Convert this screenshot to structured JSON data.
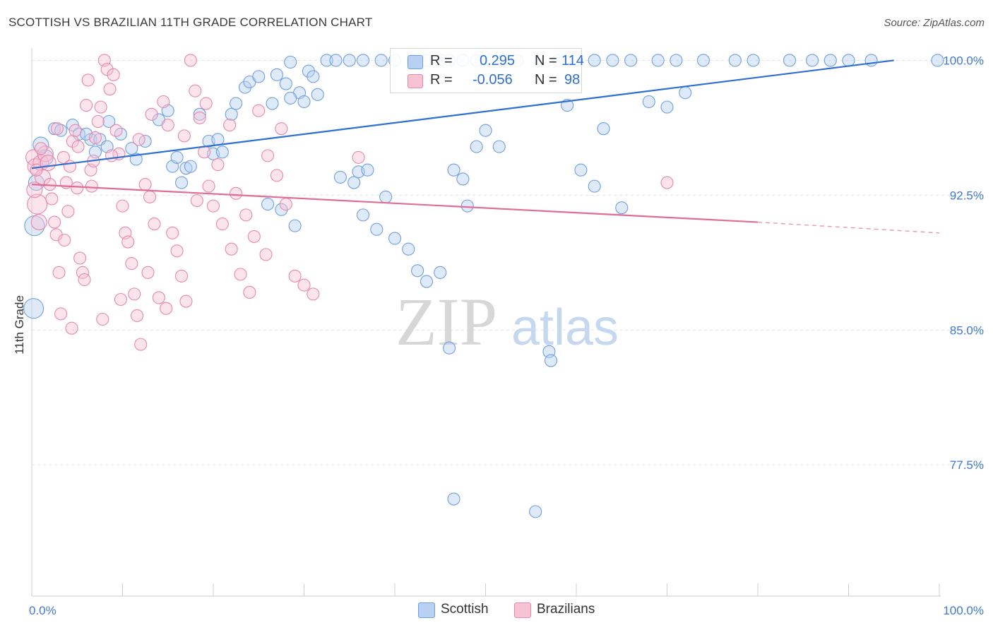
{
  "header": {
    "title": "SCOTTISH VS BRAZILIAN 11TH GRADE CORRELATION CHART",
    "source": "Source: ZipAtlas.com"
  },
  "legend": {
    "rows": [
      {
        "r_label": "R =",
        "r_value": "0.295",
        "n_label": "N =",
        "n_value": "114",
        "color": "#6f9fe0"
      },
      {
        "r_label": "R =",
        "r_value": "-0.056",
        "n_label": "N =",
        "n_value": "98",
        "color": "#e888aa"
      }
    ],
    "bottom": [
      {
        "name": "Scottish"
      },
      {
        "name": "Brazilians"
      }
    ]
  },
  "colors": {
    "blue_fill": "#b8d0f2",
    "blue_stroke": "#6f9fe0",
    "blue_line": "#2f6fd0",
    "pink_fill": "#f7c3d4",
    "pink_stroke": "#e888aa",
    "pink_line": "#e06c98",
    "grid": "#e2e2e2",
    "tick_label": "#3f78cf"
  },
  "chart_data": {
    "type": "scatter",
    "title": "SCOTTISH VS BRAZILIAN 11TH GRADE CORRELATION CHART",
    "xlabel": "",
    "ylabel": "11th Grade",
    "xlim": [
      0,
      100
    ],
    "ylim": [
      70.2,
      101.0
    ],
    "x_tick_labels": [
      "0.0%",
      "100.0%"
    ],
    "y_ticks": [
      77.5,
      85.0,
      92.5,
      100.0
    ],
    "y_tick_labels": [
      "77.5%",
      "85.0%",
      "92.5%",
      "100.0%"
    ],
    "grid": true,
    "watermark": "ZIPatlas",
    "series": [
      {
        "name": "Scottish",
        "r": 0.295,
        "n": 114,
        "trend": {
          "x0": 0,
          "y0": 94.0,
          "x1": 95,
          "y1": 100.0
        },
        "points": [
          [
            1.0,
            95.3,
            2
          ],
          [
            0.5,
            93.2,
            2
          ],
          [
            0.3,
            90.8,
            3
          ],
          [
            0.2,
            86.2,
            3
          ],
          [
            1.5,
            94.6,
            2
          ],
          [
            2.5,
            96.2,
            1
          ],
          [
            3.2,
            96.1,
            1
          ],
          [
            4.5,
            96.4,
            1
          ],
          [
            5.2,
            95.9,
            1
          ],
          [
            6.5,
            95.6,
            1
          ],
          [
            8.5,
            96.6,
            1
          ],
          [
            9.8,
            95.9,
            1
          ],
          [
            11.0,
            95.1,
            1
          ],
          [
            11.5,
            94.5,
            1
          ],
          [
            12.5,
            95.5,
            1
          ],
          [
            7.5,
            95.6,
            1
          ],
          [
            8.3,
            95.2,
            1
          ],
          [
            6.0,
            95.9,
            1
          ],
          [
            7.0,
            94.9,
            1
          ],
          [
            14.0,
            96.7,
            1
          ],
          [
            15.0,
            97.2,
            1
          ],
          [
            15.5,
            94.1,
            1
          ],
          [
            16.0,
            94.6,
            1
          ],
          [
            16.5,
            93.2,
            1
          ],
          [
            17.0,
            94.0,
            1
          ],
          [
            17.5,
            94.1,
            1
          ],
          [
            18.5,
            97.0,
            1
          ],
          [
            19.5,
            95.5,
            1
          ],
          [
            20.0,
            94.8,
            1
          ],
          [
            20.5,
            95.6,
            1
          ],
          [
            21.0,
            94.9,
            1
          ],
          [
            22.0,
            97.0,
            1
          ],
          [
            22.5,
            97.6,
            1
          ],
          [
            23.5,
            98.5,
            1
          ],
          [
            24.0,
            98.8,
            1
          ],
          [
            25.0,
            99.1,
            1
          ],
          [
            26.5,
            97.6,
            1
          ],
          [
            27.0,
            99.2,
            1
          ],
          [
            28.0,
            98.7,
            1
          ],
          [
            28.5,
            99.9,
            1
          ],
          [
            29.5,
            98.2,
            1
          ],
          [
            30.0,
            97.7,
            1
          ],
          [
            30.5,
            99.4,
            1
          ],
          [
            31.0,
            99.1,
            1
          ],
          [
            31.5,
            98.1,
            1
          ],
          [
            32.5,
            100.0,
            1
          ],
          [
            33.5,
            100.0,
            1
          ],
          [
            35.0,
            100.0,
            1
          ],
          [
            36.5,
            100.0,
            1
          ],
          [
            38.5,
            100.0,
            1
          ],
          [
            40.0,
            100.0,
            1
          ],
          [
            42.0,
            100.0,
            1
          ],
          [
            43.5,
            100.0,
            1
          ],
          [
            45.0,
            100.0,
            1
          ],
          [
            46.0,
            100.0,
            1
          ],
          [
            47.5,
            100.0,
            1
          ],
          [
            49.0,
            100.0,
            1
          ],
          [
            50.5,
            100.0,
            1
          ],
          [
            52.0,
            100.0,
            1
          ],
          [
            53.5,
            100.0,
            1
          ],
          [
            56.0,
            100.0,
            1
          ],
          [
            58.0,
            100.0,
            1
          ],
          [
            60.0,
            100.0,
            1
          ],
          [
            62.0,
            100.0,
            1
          ],
          [
            64.0,
            100.0,
            1
          ],
          [
            66.0,
            100.0,
            1
          ],
          [
            69.0,
            100.0,
            1
          ],
          [
            71.0,
            100.0,
            1
          ],
          [
            74.0,
            100.0,
            1
          ],
          [
            77.5,
            100.0,
            1
          ],
          [
            79.5,
            100.0,
            1
          ],
          [
            83.5,
            100.0,
            1
          ],
          [
            86.0,
            100.0,
            1
          ],
          [
            88.0,
            100.0,
            1
          ],
          [
            90.0,
            100.0,
            1
          ],
          [
            92.5,
            100.0,
            1
          ],
          [
            99.8,
            100.0,
            1
          ],
          [
            34.0,
            93.5,
            1
          ],
          [
            35.5,
            93.2,
            1
          ],
          [
            36.0,
            93.8,
            1
          ],
          [
            36.5,
            91.4,
            1
          ],
          [
            38.0,
            90.6,
            1
          ],
          [
            40.0,
            90.1,
            1
          ],
          [
            41.5,
            89.5,
            1
          ],
          [
            42.5,
            88.3,
            1
          ],
          [
            43.5,
            87.7,
            1
          ],
          [
            45.0,
            88.2,
            1
          ],
          [
            46.0,
            84.0,
            1
          ],
          [
            46.5,
            93.9,
            1
          ],
          [
            47.5,
            93.4,
            1
          ],
          [
            48.0,
            91.9,
            1
          ],
          [
            50.0,
            96.1,
            1
          ],
          [
            51.5,
            95.2,
            1
          ],
          [
            57.0,
            83.8,
            1
          ],
          [
            57.2,
            83.3,
            1
          ],
          [
            59.0,
            97.5,
            1
          ],
          [
            60.5,
            93.9,
            1
          ],
          [
            63.0,
            96.2,
            1
          ],
          [
            68.0,
            97.7,
            1
          ],
          [
            70.0,
            97.4,
            1
          ],
          [
            72.0,
            98.2,
            1
          ],
          [
            26.0,
            92.0,
            1
          ],
          [
            27.5,
            91.7,
            1
          ],
          [
            29.0,
            90.8,
            1
          ],
          [
            37.0,
            93.9,
            1
          ],
          [
            39.0,
            92.4,
            1
          ],
          [
            49.0,
            95.2,
            1
          ],
          [
            65.0,
            91.8,
            1
          ],
          [
            62.0,
            93.0,
            1
          ],
          [
            46.5,
            75.6,
            1
          ],
          [
            55.5,
            74.9,
            1
          ],
          [
            28.5,
            97.9,
            1
          ]
        ]
      },
      {
        "name": "Brazilians",
        "r": -0.056,
        "n": 98,
        "trend": {
          "x0": 0,
          "y0": 93.1,
          "x1": 80,
          "y1": 91.0,
          "dash_to_x": 100,
          "dash_to_y": 90.4
        },
        "points": [
          [
            0.2,
            94.6,
            2
          ],
          [
            0.4,
            94.1,
            2
          ],
          [
            0.6,
            92.0,
            3
          ],
          [
            0.8,
            91.0,
            2
          ],
          [
            1.0,
            94.3,
            2
          ],
          [
            1.2,
            93.5,
            2
          ],
          [
            1.5,
            94.8,
            2
          ],
          [
            1.8,
            94.3,
            2
          ],
          [
            2.0,
            93.1,
            1
          ],
          [
            2.2,
            92.3,
            1
          ],
          [
            2.5,
            91.0,
            1
          ],
          [
            2.7,
            90.3,
            1
          ],
          [
            3.0,
            88.2,
            1
          ],
          [
            3.2,
            85.9,
            1
          ],
          [
            3.5,
            94.6,
            1
          ],
          [
            3.8,
            93.2,
            1
          ],
          [
            4.0,
            91.6,
            1
          ],
          [
            4.2,
            94.1,
            1
          ],
          [
            4.5,
            95.5,
            1
          ],
          [
            4.8,
            96.1,
            1
          ],
          [
            5.0,
            92.9,
            1
          ],
          [
            5.3,
            89.0,
            1
          ],
          [
            5.6,
            88.2,
            1
          ],
          [
            6.0,
            97.5,
            1
          ],
          [
            6.2,
            98.9,
            1
          ],
          [
            6.5,
            93.9,
            1
          ],
          [
            6.8,
            94.4,
            1
          ],
          [
            7.0,
            95.7,
            1
          ],
          [
            7.3,
            96.6,
            1
          ],
          [
            7.6,
            97.4,
            1
          ],
          [
            8.0,
            100.0,
            1
          ],
          [
            8.3,
            99.5,
            1
          ],
          [
            8.6,
            98.4,
            1
          ],
          [
            9.0,
            99.2,
            1
          ],
          [
            9.3,
            96.1,
            1
          ],
          [
            9.6,
            94.8,
            1
          ],
          [
            10.0,
            91.9,
            1
          ],
          [
            10.3,
            90.4,
            1
          ],
          [
            10.6,
            89.9,
            1
          ],
          [
            11.0,
            88.7,
            1
          ],
          [
            11.3,
            87.0,
            1
          ],
          [
            11.6,
            85.8,
            1
          ],
          [
            12.0,
            84.2,
            1
          ],
          [
            12.5,
            93.1,
            1
          ],
          [
            13.0,
            92.4,
            1
          ],
          [
            13.5,
            90.9,
            1
          ],
          [
            14.0,
            86.8,
            1
          ],
          [
            14.5,
            97.7,
            1
          ],
          [
            15.0,
            96.4,
            1
          ],
          [
            15.5,
            90.4,
            1
          ],
          [
            16.0,
            89.4,
            1
          ],
          [
            16.5,
            88.0,
            1
          ],
          [
            17.0,
            86.6,
            1
          ],
          [
            17.5,
            100.0,
            1
          ],
          [
            18.0,
            98.3,
            1
          ],
          [
            18.5,
            96.8,
            1
          ],
          [
            19.0,
            94.9,
            1
          ],
          [
            19.5,
            93.0,
            1
          ],
          [
            20.0,
            91.9,
            1
          ],
          [
            21.0,
            90.9,
            1
          ],
          [
            22.0,
            89.5,
            1
          ],
          [
            23.0,
            88.1,
            1
          ],
          [
            24.0,
            87.1,
            1
          ],
          [
            25.0,
            97.2,
            1
          ],
          [
            26.0,
            94.7,
            1
          ],
          [
            27.0,
            93.6,
            1
          ],
          [
            28.0,
            92.0,
            1
          ],
          [
            29.0,
            88.0,
            1
          ],
          [
            30.0,
            87.5,
            1
          ],
          [
            31.0,
            87.0,
            1
          ],
          [
            36.0,
            94.6,
            1
          ],
          [
            70.0,
            93.2,
            1
          ],
          [
            0.3,
            92.8,
            2
          ],
          [
            0.5,
            93.9,
            1
          ],
          [
            1.0,
            95.1,
            1
          ],
          [
            2.8,
            96.2,
            1
          ],
          [
            3.6,
            90.0,
            1
          ],
          [
            4.4,
            85.1,
            1
          ],
          [
            5.8,
            87.8,
            1
          ],
          [
            7.8,
            85.6,
            1
          ],
          [
            9.8,
            86.7,
            1
          ],
          [
            12.8,
            88.2,
            1
          ],
          [
            14.8,
            86.2,
            1
          ],
          [
            18.2,
            92.2,
            1
          ],
          [
            20.5,
            94.2,
            1
          ],
          [
            22.5,
            92.6,
            1
          ],
          [
            24.5,
            90.2,
            1
          ],
          [
            27.5,
            96.2,
            1
          ],
          [
            8.8,
            94.7,
            1
          ],
          [
            11.8,
            95.6,
            1
          ],
          [
            13.2,
            97.0,
            1
          ],
          [
            16.8,
            95.8,
            1
          ],
          [
            19.2,
            97.6,
            1
          ],
          [
            21.8,
            96.4,
            1
          ],
          [
            23.6,
            91.4,
            1
          ],
          [
            25.8,
            89.2,
            1
          ],
          [
            6.6,
            93.0,
            1
          ],
          [
            5.1,
            95.2,
            1
          ]
        ]
      }
    ]
  }
}
